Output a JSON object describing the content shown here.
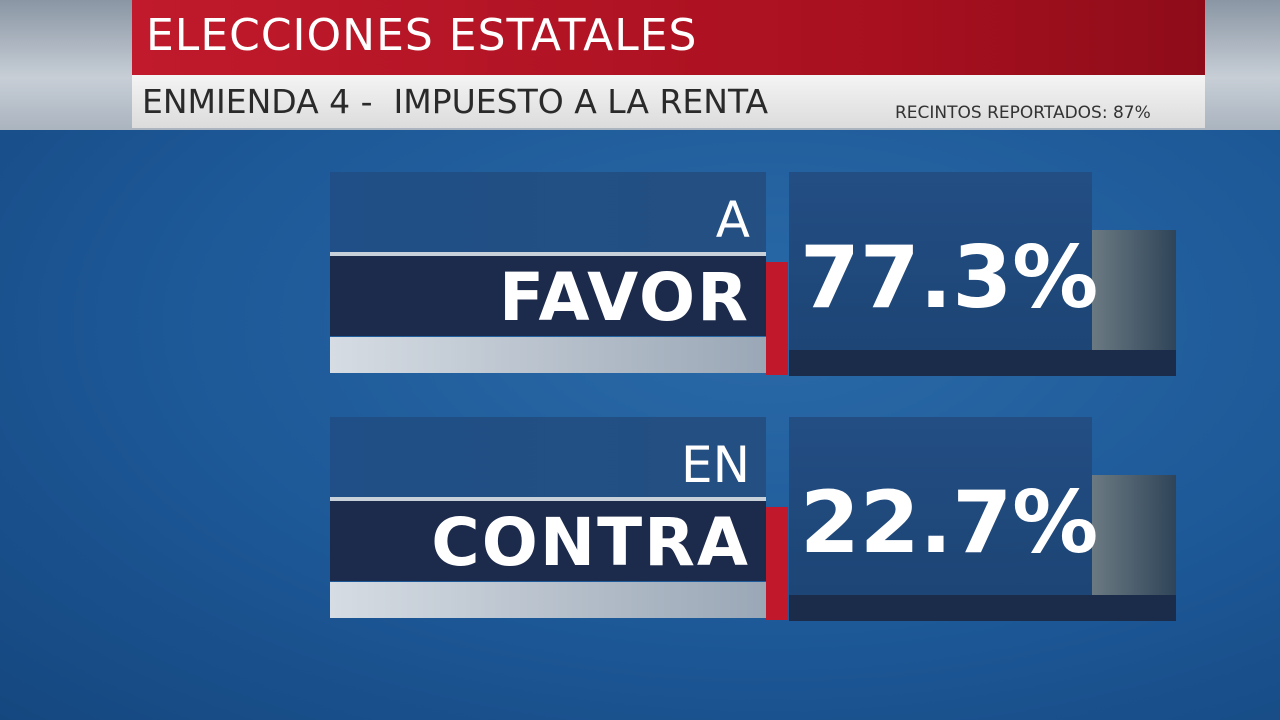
{
  "header": {
    "title": "ELECCIONES ESTATALES",
    "subtitle": "ENMIENDA 4 -  IMPUESTO A LA RENTA",
    "precincts": "RECINTOS REPORTADOS: 87%"
  },
  "results": [
    {
      "label_top": "A",
      "label_bottom": "FAVOR",
      "value": "77.3%"
    },
    {
      "label_top": "EN",
      "label_bottom": "CONTRA",
      "value": "22.7%"
    }
  ]
}
